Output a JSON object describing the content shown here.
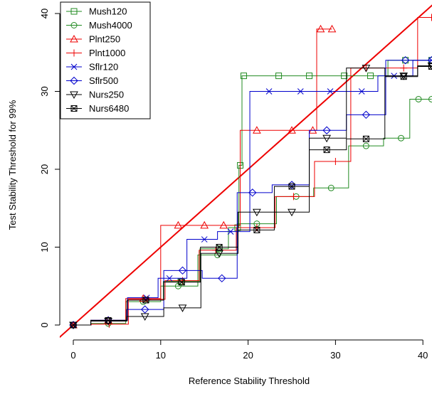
{
  "chart_data": {
    "type": "line",
    "title": "",
    "xlabel": "Reference Stability Threshold",
    "ylabel": "Test Stability Threshold for 99%",
    "xlim": [
      0,
      41
    ],
    "ylim": [
      0,
      41
    ],
    "x_ticks": [
      0,
      10,
      20,
      30,
      40
    ],
    "y_ticks": [
      0,
      10,
      20,
      30,
      40
    ],
    "grid": false,
    "legend_position": "top-left",
    "reference_line": {
      "slope": 1,
      "intercept": 0,
      "color": "#ee0000"
    },
    "series": [
      {
        "name": "Mush120",
        "color": "#228b22",
        "marker": "square",
        "points": [
          [
            0,
            0
          ],
          [
            4,
            0.5
          ],
          [
            8.3,
            3.2
          ],
          [
            12.3,
            5.6
          ],
          [
            16.7,
            9.8
          ],
          [
            18.8,
            12.5
          ],
          [
            19.1,
            20.5
          ],
          [
            19.5,
            32
          ],
          [
            23.5,
            32
          ],
          [
            27,
            32
          ],
          [
            31,
            32
          ],
          [
            34,
            32
          ],
          [
            38,
            34
          ],
          [
            41,
            34
          ]
        ]
      },
      {
        "name": "Mush4000",
        "color": "#228b22",
        "marker": "circle",
        "points": [
          [
            0,
            0
          ],
          [
            4,
            0.2
          ],
          [
            8,
            3
          ],
          [
            12,
            5
          ],
          [
            16.5,
            9
          ],
          [
            21,
            13
          ],
          [
            25.5,
            16.5
          ],
          [
            29.5,
            17.6
          ],
          [
            33.5,
            23
          ],
          [
            37.5,
            24
          ],
          [
            39.5,
            29
          ],
          [
            41,
            29
          ]
        ]
      },
      {
        "name": "Plnt250",
        "color": "#ee0000",
        "marker": "triangle-up",
        "points": [
          [
            0,
            0
          ],
          [
            4,
            0.6
          ],
          [
            8,
            3.4
          ],
          [
            12,
            12.8
          ],
          [
            15,
            12.8
          ],
          [
            17.2,
            12.8
          ],
          [
            21,
            25
          ],
          [
            25,
            25
          ],
          [
            27.4,
            25
          ],
          [
            28.3,
            38
          ],
          [
            29.6,
            38
          ]
        ]
      },
      {
        "name": "Plnt1000",
        "color": "#ee0000",
        "marker": "plus",
        "points": [
          [
            0,
            0
          ],
          [
            4.1,
            0.1
          ],
          [
            8.5,
            3.3
          ],
          [
            12.5,
            5.7
          ],
          [
            16.3,
            9.6
          ],
          [
            21,
            12.5
          ],
          [
            25.2,
            16.5
          ],
          [
            30,
            21
          ],
          [
            33.5,
            33
          ],
          [
            37.8,
            33
          ],
          [
            41,
            39.5
          ]
        ]
      },
      {
        "name": "Sflr120",
        "color": "#0000cc",
        "marker": "x",
        "points": [
          [
            0,
            0
          ],
          [
            4,
            0.6
          ],
          [
            8.4,
            3.5
          ],
          [
            11,
            6
          ],
          [
            15,
            11
          ],
          [
            18,
            12
          ],
          [
            22.4,
            30
          ],
          [
            26,
            30
          ],
          [
            29.4,
            30
          ],
          [
            33,
            30
          ],
          [
            36.7,
            32
          ],
          [
            41,
            34
          ]
        ]
      },
      {
        "name": "Sflr500",
        "color": "#0000cc",
        "marker": "diamond",
        "points": [
          [
            0,
            0
          ],
          [
            4,
            0.6
          ],
          [
            8.2,
            2
          ],
          [
            12.5,
            7
          ],
          [
            17,
            6
          ],
          [
            20.5,
            17
          ],
          [
            25,
            18
          ],
          [
            29,
            25
          ],
          [
            33.5,
            27
          ],
          [
            38,
            34
          ],
          [
            41,
            34
          ]
        ]
      },
      {
        "name": "Nurs250",
        "color": "#000000",
        "marker": "triangle-down",
        "points": [
          [
            0,
            0
          ],
          [
            4,
            0.5
          ],
          [
            8.2,
            1.1
          ],
          [
            12.5,
            2.2
          ],
          [
            16.7,
            9.2
          ],
          [
            21,
            14.5
          ],
          [
            25,
            14.5
          ],
          [
            29,
            24
          ],
          [
            33.5,
            33
          ],
          [
            37.8,
            32
          ],
          [
            41,
            33.3
          ]
        ]
      },
      {
        "name": "Nurs6480",
        "color": "#000000",
        "marker": "boxx",
        "points": [
          [
            0,
            0
          ],
          [
            4,
            0.6
          ],
          [
            8.3,
            3.2
          ],
          [
            12.4,
            5.5
          ],
          [
            16.7,
            10
          ],
          [
            21,
            12.2
          ],
          [
            25,
            17.8
          ],
          [
            29,
            22.5
          ],
          [
            33.5,
            23.9
          ],
          [
            37.8,
            31.9
          ],
          [
            41,
            33.2
          ]
        ]
      }
    ]
  }
}
